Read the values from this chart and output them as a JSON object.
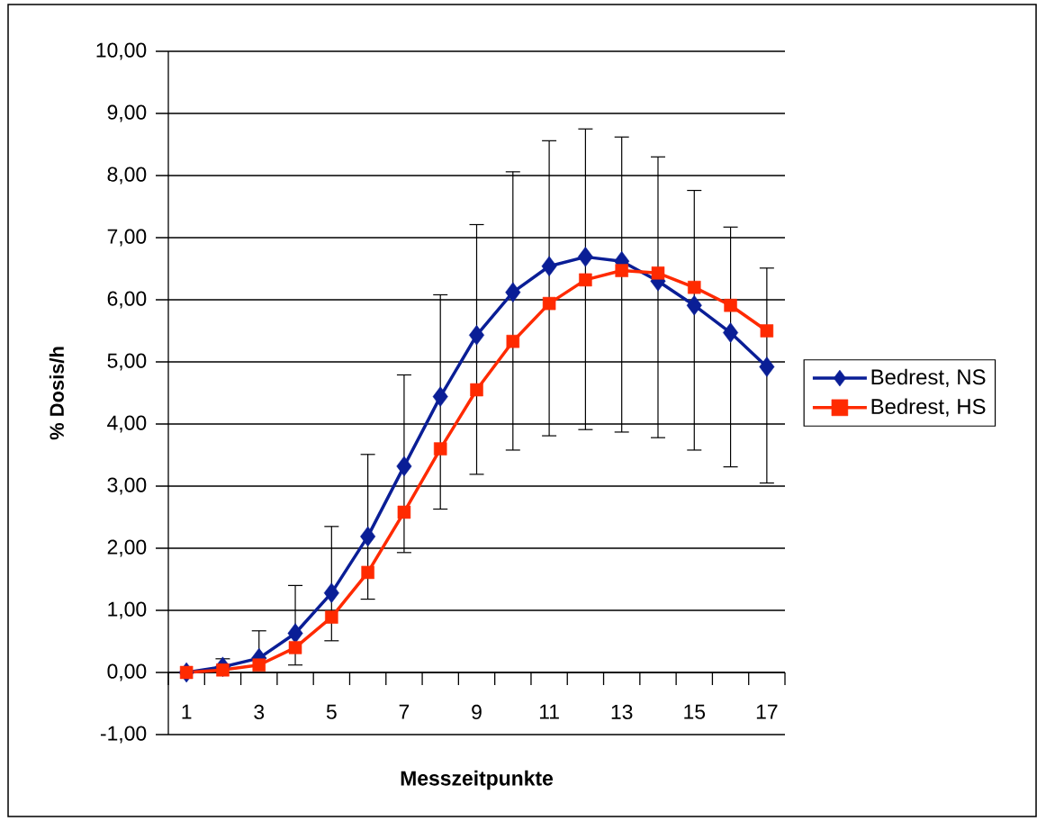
{
  "chart_data": {
    "type": "line",
    "xlabel": "Messzeitpunkte",
    "ylabel": "% Dosis/h",
    "categories": [
      "1",
      null,
      "3",
      null,
      "5",
      null,
      "7",
      null,
      "9",
      null,
      "11",
      null,
      "13",
      null,
      "15",
      null,
      "17"
    ],
    "series": [
      {
        "name": "Bedrest, NS",
        "color": "#0a1e96",
        "marker": "diamond",
        "values": [
          0,
          0.09,
          0.23,
          0.63,
          1.28,
          2.19,
          3.32,
          4.44,
          5.43,
          6.12,
          6.54,
          6.69,
          6.62,
          6.3,
          5.91,
          5.47,
          4.92
        ],
        "errors": [
          null,
          [
            0.09,
            0.22
          ],
          [
            0.23,
            0.67
          ],
          [
            0.12,
            1.4
          ],
          [
            0.51,
            2.35
          ],
          [
            1.18,
            3.51
          ],
          [
            1.93,
            4.79
          ],
          [
            2.63,
            6.08
          ],
          [
            3.19,
            7.21
          ],
          [
            3.58,
            8.06
          ],
          [
            3.81,
            8.56
          ],
          [
            3.91,
            8.75
          ],
          [
            3.87,
            8.62
          ],
          [
            3.78,
            8.3
          ],
          [
            3.58,
            7.76
          ],
          [
            3.31,
            7.17
          ],
          [
            3.05,
            6.51
          ]
        ]
      },
      {
        "name": "Bedrest, HS",
        "color": "#ff2a00",
        "marker": "square",
        "values": [
          0,
          0.04,
          0.12,
          0.4,
          0.89,
          1.61,
          2.58,
          3.6,
          4.55,
          5.33,
          5.94,
          6.32,
          6.47,
          6.43,
          6.2,
          5.91,
          5.5
        ]
      }
    ],
    "ylim": [
      -1,
      10
    ],
    "yticks": [
      {
        "value": -1,
        "label": "-1,00"
      },
      {
        "value": 0,
        "label": "0,00"
      },
      {
        "value": 1,
        "label": "1,00"
      },
      {
        "value": 2,
        "label": "2,00"
      },
      {
        "value": 3,
        "label": "3,00"
      },
      {
        "value": 4,
        "label": "4,00"
      },
      {
        "value": 5,
        "label": "5,00"
      },
      {
        "value": 6,
        "label": "6,00"
      },
      {
        "value": 7,
        "label": "7,00"
      },
      {
        "value": 8,
        "label": "8,00"
      },
      {
        "value": 9,
        "label": "9,00"
      },
      {
        "value": 10,
        "label": "10,00"
      }
    ],
    "grid": "y",
    "legend": "right",
    "line_style": "solid"
  }
}
